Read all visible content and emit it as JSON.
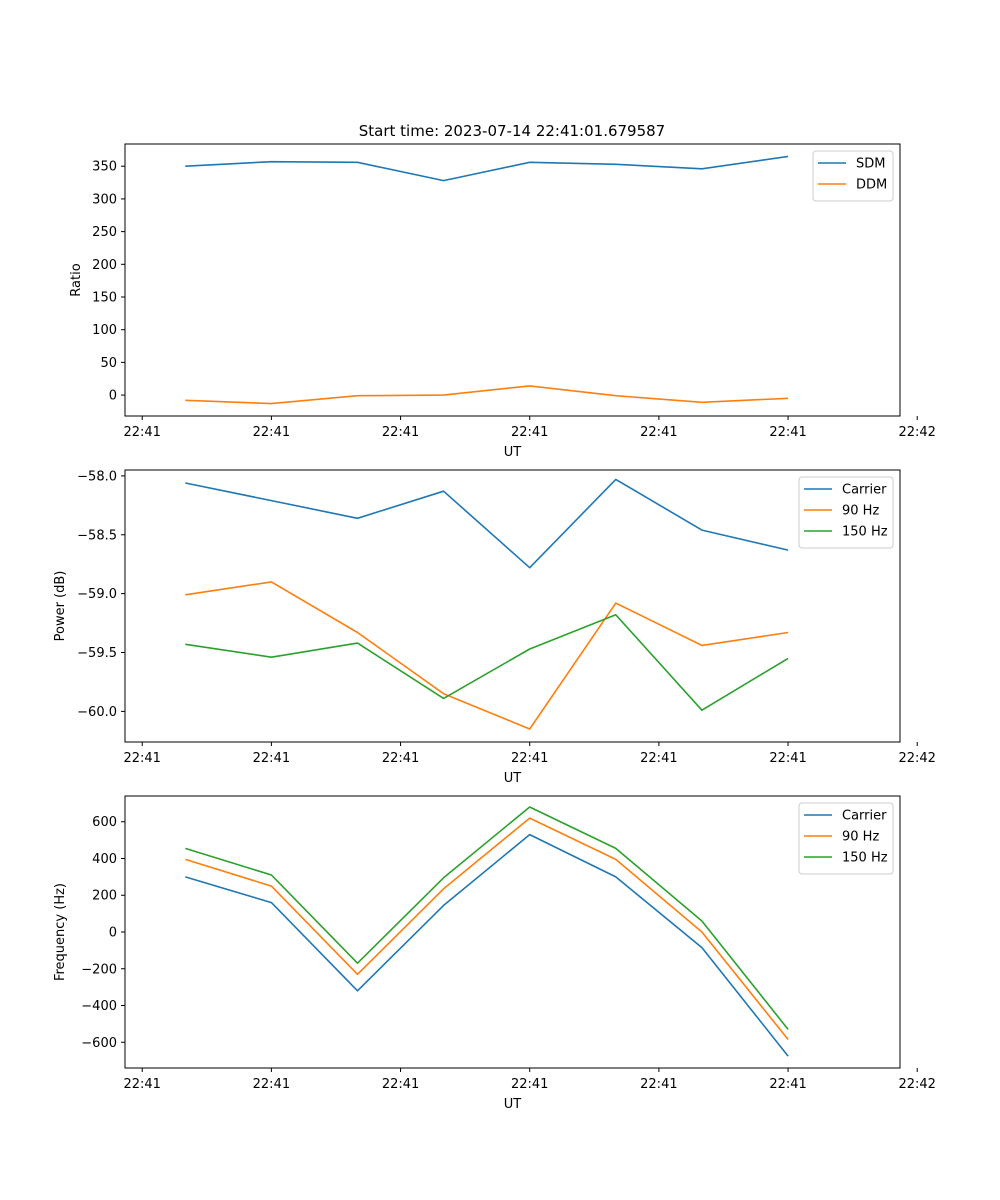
{
  "figure": {
    "suptitle": "Start time: 2023-07-14 22:41:01.679587"
  },
  "chart_data": [
    {
      "type": "line",
      "title": "Start time: 2023-07-14 22:41:01.679587",
      "xlabel": "UT",
      "ylabel": "Ratio",
      "xlim": [
        -0.2,
        8.8
      ],
      "ylim": [
        -32,
        384
      ],
      "xticks": [
        0,
        1.5,
        3,
        4.5,
        6,
        7.5,
        9
      ],
      "xtick_labels": [
        "22:41",
        "22:41",
        "22:41",
        "22:41",
        "22:41",
        "22:41",
        "22:42"
      ],
      "yticks": [
        0,
        50,
        100,
        150,
        200,
        250,
        300,
        350
      ],
      "ytick_labels": [
        "0",
        "50",
        "100",
        "150",
        "200",
        "250",
        "300",
        "350"
      ],
      "x": [
        0.5,
        1.5,
        2.5,
        3.5,
        4.5,
        5.5,
        6.5,
        7.5
      ],
      "series": [
        {
          "name": "SDM",
          "color": "#1f77b4",
          "values": [
            350,
            357,
            356,
            328,
            356,
            353,
            346,
            365
          ]
        },
        {
          "name": "DDM",
          "color": "#ff7f0e",
          "values": [
            -8,
            -13,
            -1,
            0,
            14,
            -1,
            -11,
            -5
          ]
        }
      ],
      "legend": "upper right"
    },
    {
      "type": "line",
      "title": "",
      "xlabel": "UT",
      "ylabel": "Power (dB)",
      "xlim": [
        -0.2,
        8.8
      ],
      "ylim": [
        -60.26,
        -57.95
      ],
      "xticks": [
        0,
        1.5,
        3,
        4.5,
        6,
        7.5,
        9
      ],
      "xtick_labels": [
        "22:41",
        "22:41",
        "22:41",
        "22:41",
        "22:41",
        "22:41",
        "22:42"
      ],
      "yticks": [
        -60.0,
        -59.5,
        -59.0,
        -58.5,
        -58.0
      ],
      "ytick_labels": [
        "−60.0",
        "−59.5",
        "−59.0",
        "−58.5",
        "−58.0"
      ],
      "x": [
        0.5,
        1.5,
        2.5,
        3.5,
        4.5,
        5.5,
        6.5,
        7.5
      ],
      "series": [
        {
          "name": "Carrier",
          "color": "#1f77b4",
          "values": [
            -58.06,
            -58.21,
            -58.36,
            -58.13,
            -58.78,
            -58.03,
            -58.46,
            -58.63
          ]
        },
        {
          "name": "90 Hz",
          "color": "#ff7f0e",
          "values": [
            -59.01,
            -58.9,
            -59.33,
            -59.85,
            -60.15,
            -59.08,
            -59.44,
            -59.33
          ]
        },
        {
          "name": "150 Hz",
          "color": "#2ca02c",
          "values": [
            -59.43,
            -59.54,
            -59.42,
            -59.89,
            -59.47,
            -59.18,
            -59.99,
            -59.55
          ]
        }
      ],
      "legend": "upper right"
    },
    {
      "type": "line",
      "title": "",
      "xlabel": "UT",
      "ylabel": "Frequency (Hz)",
      "xlim": [
        -0.2,
        8.8
      ],
      "ylim": [
        -740,
        740
      ],
      "xticks": [
        0,
        1.5,
        3,
        4.5,
        6,
        7.5,
        9
      ],
      "xtick_labels": [
        "22:41",
        "22:41",
        "22:41",
        "22:41",
        "22:41",
        "22:41",
        "22:42"
      ],
      "yticks": [
        -600,
        -400,
        -200,
        0,
        200,
        400,
        600
      ],
      "ytick_labels": [
        "−600",
        "−400",
        "−200",
        "0",
        "200",
        "400",
        "600"
      ],
      "x": [
        0.5,
        1.5,
        2.5,
        3.5,
        4.5,
        5.5,
        6.5,
        7.5
      ],
      "series": [
        {
          "name": "Carrier",
          "color": "#1f77b4",
          "values": [
            300,
            160,
            -320,
            145,
            530,
            300,
            -85,
            -675
          ]
        },
        {
          "name": "90 Hz",
          "color": "#ff7f0e",
          "values": [
            395,
            250,
            -230,
            235,
            620,
            395,
            0,
            -585
          ]
        },
        {
          "name": "150 Hz",
          "color": "#2ca02c",
          "values": [
            455,
            310,
            -170,
            295,
            680,
            455,
            60,
            -530
          ]
        }
      ],
      "legend": "upper right"
    }
  ]
}
